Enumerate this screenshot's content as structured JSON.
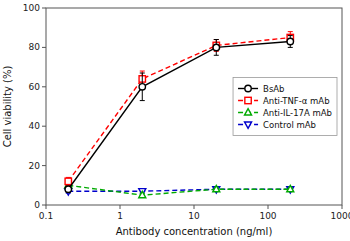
{
  "chart_data": {
    "type": "line",
    "xlabel": "Antibody concentration (ng/ml)",
    "ylabel": "Cell viability (%)",
    "x": [
      0.2,
      2,
      20,
      200
    ],
    "series": [
      {
        "name": "BsAb",
        "color": "#000000",
        "marker": "circle",
        "line_style": "solid",
        "values": [
          8,
          60,
          80,
          83
        ],
        "errors": [
          1.5,
          7,
          4,
          3
        ]
      },
      {
        "name": "Anti-TNF-α  mAb",
        "color": "#ff0000",
        "marker": "square",
        "line_style": "dashed",
        "values": [
          12,
          64,
          81,
          85
        ],
        "errors": [
          2,
          4,
          3,
          3
        ]
      },
      {
        "name": "Anti-IL-17A mAb",
        "color": "#00aa00",
        "marker": "triangle-up",
        "line_style": "dashed",
        "values": [
          10,
          5,
          8,
          8
        ],
        "errors": [
          1.5,
          1,
          1,
          1
        ]
      },
      {
        "name": "Control mAb",
        "color": "#0000cc",
        "marker": "triangle-down",
        "line_style": "dashed",
        "values": [
          7,
          7,
          8,
          8
        ],
        "errors": [
          1,
          1,
          1,
          1
        ]
      }
    ],
    "xlim": [
      0.1,
      1000
    ],
    "ylim": [
      0,
      100
    ],
    "xticks": [
      0.1,
      1,
      10,
      100,
      1000
    ],
    "yticks": [
      0,
      20,
      40,
      60,
      80,
      100
    ],
    "log": "x",
    "grid": false,
    "legend": "right"
  }
}
